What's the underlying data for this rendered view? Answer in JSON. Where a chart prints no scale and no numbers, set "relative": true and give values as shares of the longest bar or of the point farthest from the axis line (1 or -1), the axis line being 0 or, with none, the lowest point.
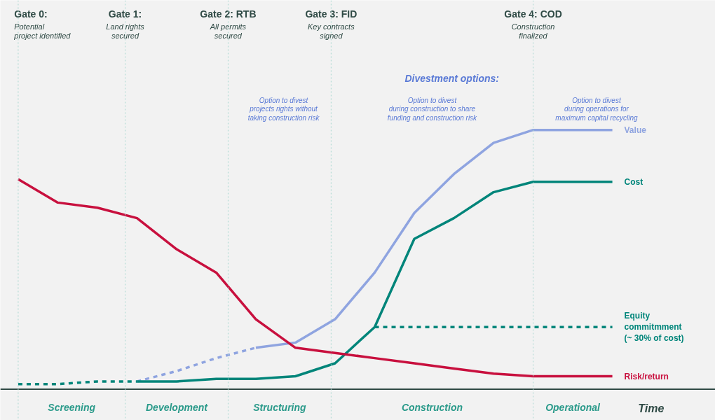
{
  "chart_data": {
    "type": "line",
    "relative": true,
    "xlabel": "Time",
    "categories": [
      null,
      null,
      null,
      null,
      null,
      null,
      null,
      null,
      null,
      null,
      null,
      null,
      null,
      null,
      null,
      null
    ],
    "series": [
      {
        "name": "Value",
        "color": "#8fa4e0",
        "line_style": "solid",
        "values": [
          null,
          null,
          null,
          null,
          null,
          null,
          0.16,
          0.18,
          0.27,
          0.45,
          0.68,
          0.83,
          0.95,
          1,
          1,
          1
        ]
      },
      {
        "color": "#8fa4e0",
        "line_style": "dashed",
        "values": [
          null,
          null,
          null,
          0.03,
          0.07,
          0.12,
          0.16,
          null,
          null,
          null,
          null,
          null,
          null,
          null,
          null,
          null
        ]
      },
      {
        "name": "Cost",
        "color": "#00857a",
        "line_style": "solid",
        "values": [
          null,
          null,
          null,
          0.03,
          0.03,
          0.04,
          0.04,
          0.05,
          0.1,
          0.24,
          0.58,
          0.66,
          0.76,
          0.8,
          0.8,
          0.8
        ]
      },
      {
        "color": "#00857a",
        "line_style": "dashed",
        "values": [
          0.02,
          0.02,
          0.03,
          0.03,
          null,
          null,
          null,
          null,
          null,
          null,
          null,
          null,
          null,
          null,
          null,
          null
        ]
      },
      {
        "name": "Equity\ncommitmment\n(~ 30% of cost)",
        "color": "#00857a",
        "line_style": "dashed",
        "values": [
          null,
          null,
          null,
          null,
          null,
          null,
          null,
          null,
          null,
          0.24,
          0.24,
          0.24,
          0.24,
          0.24,
          0.24,
          0.24
        ]
      },
      {
        "name": "Risk/return",
        "color": "#c8103e",
        "line_style": "solid",
        "values": [
          0.81,
          0.72,
          0.7,
          0.66,
          0.54,
          0.45,
          0.27,
          0.16,
          0.14,
          0.12,
          0.1,
          0.08,
          0.06,
          0.05,
          0.05,
          0.05
        ]
      }
    ],
    "annotations": [
      "Gate 0:\nPotential\nproject identified",
      "Gate 1:\nLand rights\nsecured",
      "Gate 2: RTB\nAll permits\nsecured",
      "Gate 3: FID\nKey contracts\nsigned",
      "Gate 4: COD\nConstruction\nfinalized",
      "Screening",
      "Development",
      "Structuring",
      "Construction",
      "Operational",
      "Divestment options:",
      "Option to divest\nprojects rights without\ntaking construction risk",
      "Option to divest\nduring construction to share\nfunding and construction risk",
      "Option to divest\nduring operations for\nmaximum capital recycling"
    ],
    "grid": false
  }
}
